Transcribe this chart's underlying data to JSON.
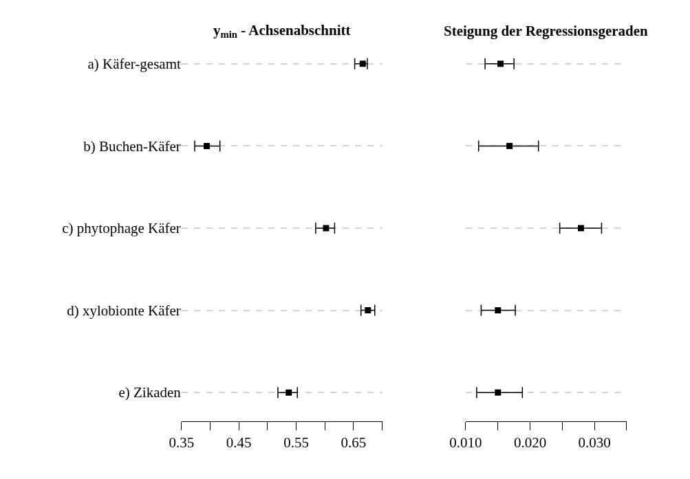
{
  "chart_data": [
    {
      "type": "scatter",
      "title": "y$_{min}$ - Achsenabschnitt",
      "orientation": "horizontal",
      "categories": [
        "a) Käfer-gesamt",
        "b) Buchen-Käfer",
        "c) phytophage Käfer",
        "d) xylobionte Käfer",
        "e) Zikaden"
      ],
      "color": "#000000",
      "values": [
        0.666,
        0.394,
        0.602,
        0.675,
        0.537
      ],
      "errors": [
        [
          0.652,
          0.674
        ],
        [
          0.373,
          0.417
        ],
        [
          0.584,
          0.617
        ],
        [
          0.663,
          0.687
        ],
        [
          0.518,
          0.552
        ]
      ],
      "xlim": [
        0.35,
        0.7
      ],
      "xticks": [
        0.35,
        {
          "value": 0.4,
          "label": null
        },
        0.45,
        {
          "value": 0.5,
          "label": null
        },
        0.55,
        {
          "value": 0.6,
          "label": null
        },
        0.65,
        {
          "value": 0.7,
          "label": null
        }
      ],
      "grid": "y",
      "marker": "square"
    },
    {
      "type": "scatter",
      "title": "Steigung der Regressionsgeraden",
      "orientation": "horizontal",
      "categories": [
        null,
        null,
        null,
        null,
        null
      ],
      "color": "#000000",
      "values": [
        0.0154,
        0.0168,
        0.0279,
        0.015,
        0.015
      ],
      "errors": [
        [
          0.013,
          0.0175
        ],
        [
          0.012,
          0.0213
        ],
        [
          0.0246,
          0.0311
        ],
        [
          0.0124,
          0.0177
        ],
        [
          0.0117,
          0.0188
        ]
      ],
      "xlim": [
        0.01,
        0.035
      ],
      "xticks": [
        {
          "value": 0.01,
          "label": "0.010"
        },
        {
          "value": 0.015,
          "label": null
        },
        {
          "value": 0.02,
          "label": "0.020"
        },
        {
          "value": 0.025,
          "label": null
        },
        {
          "value": 0.03,
          "label": "0.030"
        },
        {
          "value": 0.035,
          "label": null
        }
      ],
      "tick_labels": "x",
      "grid": "y",
      "marker": "square"
    }
  ]
}
